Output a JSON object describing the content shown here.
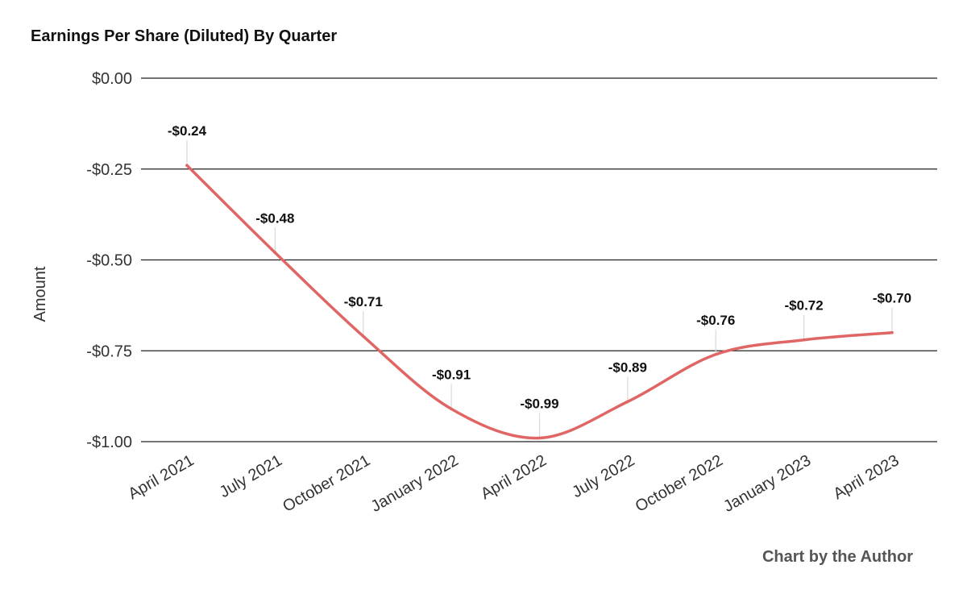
{
  "chart_data": {
    "type": "line",
    "title": "Earnings Per Share (Diluted) By Quarter",
    "xlabel": "",
    "ylabel": "Amount",
    "categories": [
      "April 2021",
      "July 2021",
      "October 2021",
      "January 2022",
      "April 2022",
      "July 2022",
      "October 2022",
      "January 2023",
      "April 2023"
    ],
    "values": [
      -0.24,
      -0.48,
      -0.71,
      -0.91,
      -0.99,
      -0.89,
      -0.76,
      -0.72,
      -0.7
    ],
    "data_labels": [
      "-$0.24",
      "-$0.48",
      "-$0.71",
      "-$0.91",
      "-$0.99",
      "-$0.89",
      "-$0.76",
      "-$0.72",
      "-$0.70"
    ],
    "y_ticks": [
      0,
      -0.25,
      -0.5,
      -0.75,
      -1.0
    ],
    "y_tick_labels": [
      "$0.00",
      "-$0.25",
      "-$0.50",
      "-$0.75",
      "-$1.00"
    ],
    "ylim": [
      -1.0,
      0
    ],
    "grid": true,
    "legend": "none",
    "line_color": "#e06666"
  },
  "footer": {
    "credit": "Chart by the Author"
  }
}
